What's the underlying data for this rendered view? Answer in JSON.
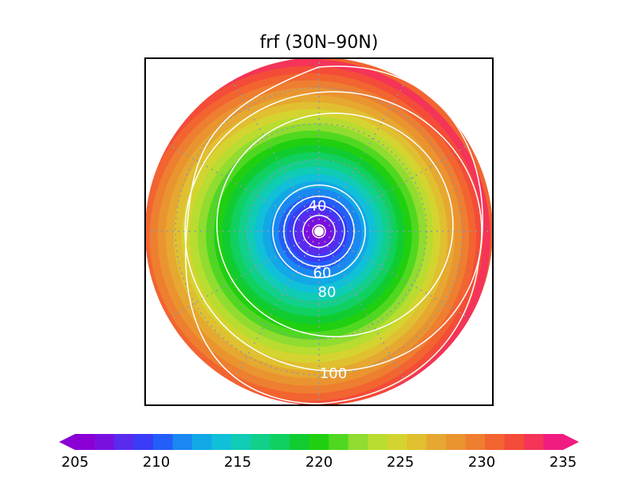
{
  "title": "frf (30N–90N)",
  "map": {
    "projection": "north polar stereographic",
    "latitude_range": "30N–90N",
    "grid_style": "dotted",
    "contour_line_color": "#ffffff",
    "contour_labels": [
      "40",
      "60",
      "80",
      "100"
    ]
  },
  "colorbar": {
    "min": 205,
    "max": 235,
    "tick_labels": [
      "205",
      "210",
      "215",
      "220",
      "225",
      "230",
      "235"
    ],
    "colors": [
      "#8a00d4",
      "#7a10e0",
      "#5a2aee",
      "#3a3cf6",
      "#245ef8",
      "#1a88f0",
      "#12a8e6",
      "#10c0d8",
      "#10ccb4",
      "#10d08a",
      "#10d060",
      "#10cc30",
      "#20d010",
      "#50d820",
      "#90dc30",
      "#b8dc30",
      "#d4d430",
      "#e0c030",
      "#e6a830",
      "#ea9430",
      "#ee7e30",
      "#f26430",
      "#f44c38",
      "#f43458",
      "#f01c80"
    ],
    "extend": "both"
  },
  "chart_data": {
    "type": "heatmap",
    "title": "frf (30N–90N)",
    "field_min_at": "pole",
    "approx_pole_value": 205,
    "approx_edge_value": 232,
    "contour_levels": [
      40,
      60,
      80,
      100
    ],
    "colorbar_range": [
      205,
      235
    ]
  }
}
